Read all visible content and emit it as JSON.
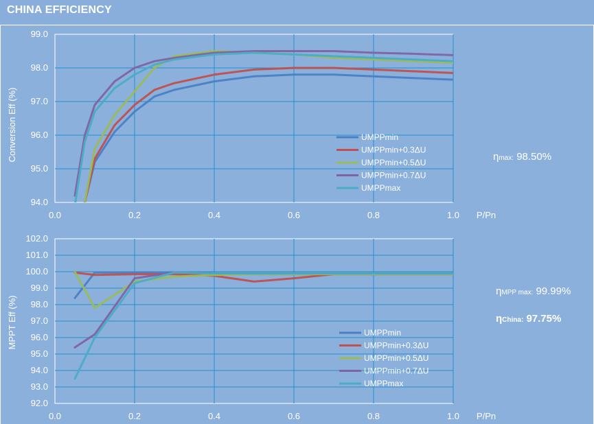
{
  "header": {
    "title": "CHINA EFFICIENCY"
  },
  "stats": {
    "eta_max": {
      "symbol": "η",
      "sub": "max:",
      "value": "98.50%"
    },
    "eta_mpp_max": {
      "symbol": "η",
      "sub": "MPP max:",
      "value": "99.99%"
    },
    "eta_china": {
      "symbol": "η",
      "sub": "China:",
      "value": "97.75%"
    }
  },
  "colors": {
    "UMPPmin": "#4a7fc4",
    "UMPPmin+0.3ΔU": "#c0504d",
    "UMPPmin+0.5ΔU": "#9bbb59",
    "UMPPmin+0.7ΔU": "#8064a2",
    "UMPPmax": "#4bacc6",
    "grid": "#1f8fd0",
    "background": "#8cb0dc"
  },
  "chart_data": [
    {
      "type": "line",
      "ylabel": "Conversion Eff (%)",
      "xlabel": "P/Pn",
      "xlim": [
        0.0,
        1.0
      ],
      "ylim": [
        94.0,
        99.0
      ],
      "xticks": [
        "0.0",
        "0.2",
        "0.4",
        "0.6",
        "0.8",
        "1.0"
      ],
      "yticks": [
        "94.0",
        "95.0",
        "96.0",
        "97.0",
        "98.0",
        "99.0"
      ],
      "grid": true,
      "legend_position": "bottom-right",
      "series": [
        {
          "name": "UMPPmin",
          "x": [
            0.05,
            0.075,
            0.1,
            0.15,
            0.2,
            0.25,
            0.3,
            0.4,
            0.5,
            0.6,
            0.7,
            0.8,
            0.9,
            1.0
          ],
          "y": [
            93.5,
            94.0,
            95.2,
            96.1,
            96.7,
            97.15,
            97.35,
            97.6,
            97.75,
            97.8,
            97.8,
            97.75,
            97.7,
            97.65
          ]
        },
        {
          "name": "UMPPmin+0.3ΔU",
          "x": [
            0.05,
            0.075,
            0.1,
            0.15,
            0.2,
            0.25,
            0.3,
            0.4,
            0.5,
            0.6,
            0.7,
            0.8,
            0.9,
            1.0
          ],
          "y": [
            93.4,
            94.0,
            95.3,
            96.3,
            96.9,
            97.35,
            97.55,
            97.8,
            97.95,
            98.0,
            98.0,
            97.95,
            97.9,
            97.85
          ]
        },
        {
          "name": "UMPPmin+0.5ΔU",
          "x": [
            0.05,
            0.075,
            0.1,
            0.15,
            0.2,
            0.25,
            0.3,
            0.4,
            0.5,
            0.6,
            0.7,
            0.8,
            0.9,
            1.0
          ],
          "y": [
            93.5,
            94.0,
            95.6,
            96.6,
            97.3,
            98.0,
            98.35,
            98.5,
            98.45,
            98.4,
            98.3,
            98.25,
            98.2,
            98.15
          ]
        },
        {
          "name": "UMPPmin+0.7ΔU",
          "x": [
            0.05,
            0.075,
            0.1,
            0.15,
            0.2,
            0.25,
            0.3,
            0.4,
            0.5,
            0.6,
            0.7,
            0.8,
            0.9,
            1.0
          ],
          "y": [
            94.2,
            96.0,
            96.9,
            97.6,
            98.0,
            98.2,
            98.3,
            98.45,
            98.5,
            98.5,
            98.5,
            98.45,
            98.42,
            98.38
          ]
        },
        {
          "name": "UMPPmax",
          "x": [
            0.05,
            0.075,
            0.1,
            0.15,
            0.2,
            0.25,
            0.3,
            0.4,
            0.5,
            0.6,
            0.7,
            0.8,
            0.9,
            1.0
          ],
          "y": [
            93.9,
            95.8,
            96.7,
            97.4,
            97.8,
            98.1,
            98.25,
            98.4,
            98.45,
            98.4,
            98.35,
            98.3,
            98.25,
            98.2
          ]
        }
      ]
    },
    {
      "type": "line",
      "ylabel": "MPPT Eff (%)",
      "xlabel": "P/Pn",
      "xlim": [
        0.0,
        1.0
      ],
      "ylim": [
        92.0,
        102.0
      ],
      "xticks": [
        "0.0",
        "0.2",
        "0.4",
        "0.6",
        "0.8",
        "1.0"
      ],
      "yticks": [
        "92.0",
        "93.0",
        "94.0",
        "95.0",
        "96.0",
        "97.0",
        "98.0",
        "99.0",
        "100.0",
        "101.0",
        "102.0"
      ],
      "grid": true,
      "legend_position": "bottom-right",
      "series": [
        {
          "name": "UMPPmin",
          "x": [
            0.05,
            0.1,
            0.2,
            0.3,
            0.4,
            0.5,
            0.6,
            0.7,
            0.8,
            0.9,
            1.0
          ],
          "y": [
            98.4,
            99.95,
            99.95,
            99.95,
            99.9,
            99.85,
            99.85,
            99.85,
            99.85,
            99.85,
            99.85
          ]
        },
        {
          "name": "UMPPmin+0.3ΔU",
          "x": [
            0.05,
            0.1,
            0.2,
            0.3,
            0.4,
            0.5,
            0.6,
            0.7,
            0.8,
            0.9,
            1.0
          ],
          "y": [
            99.95,
            99.8,
            99.85,
            99.85,
            99.75,
            99.4,
            99.6,
            99.85,
            99.85,
            99.85,
            99.85
          ]
        },
        {
          "name": "UMPPmin+0.5ΔU",
          "x": [
            0.05,
            0.1,
            0.2,
            0.3,
            0.4,
            0.5,
            0.6,
            0.7,
            0.8,
            0.9,
            1.0
          ],
          "y": [
            100.0,
            97.8,
            99.4,
            99.7,
            99.8,
            99.85,
            99.85,
            99.85,
            99.85,
            99.85,
            99.85
          ]
        },
        {
          "name": "UMPPmin+0.7ΔU",
          "x": [
            0.05,
            0.1,
            0.2,
            0.3,
            0.4,
            0.5,
            0.6,
            0.7,
            0.8,
            0.9,
            1.0
          ],
          "y": [
            95.4,
            96.2,
            99.6,
            99.95,
            99.9,
            99.9,
            99.9,
            99.9,
            99.9,
            99.9,
            99.9
          ]
        },
        {
          "name": "UMPPmax",
          "x": [
            0.05,
            0.1,
            0.2,
            0.3,
            0.4,
            0.5,
            0.6,
            0.7,
            0.8,
            0.9,
            1.0
          ],
          "y": [
            93.5,
            96.0,
            99.3,
            99.95,
            99.9,
            99.9,
            99.9,
            99.9,
            99.9,
            99.9,
            99.9
          ]
        }
      ]
    }
  ]
}
